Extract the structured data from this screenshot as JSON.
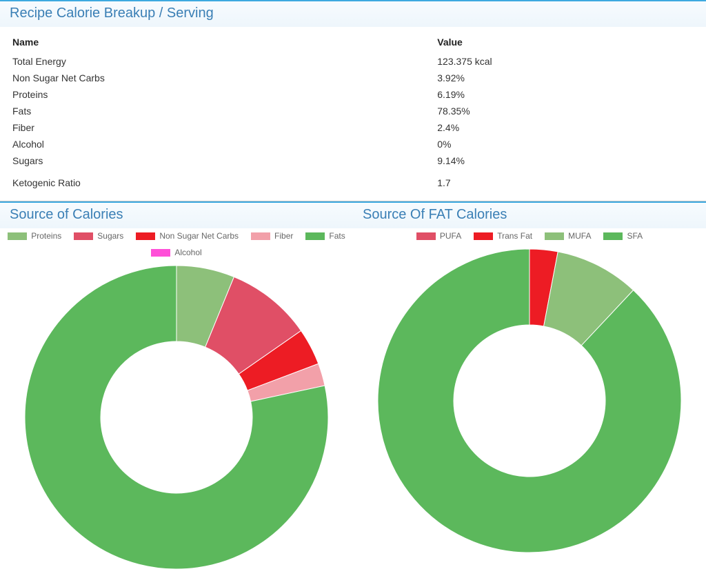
{
  "breakup_panel": {
    "title": "Recipe Calorie Breakup / Serving",
    "title_color": "#3a7fb5",
    "title_fontsize": 20,
    "border_top_color": "#3da9e0",
    "header_bg_top": "#f7fbfe",
    "header_bg_bottom": "#eef6fc",
    "columns": [
      "Name",
      "Value"
    ],
    "rows": [
      {
        "name": "Total Energy",
        "value": "123.375 kcal"
      },
      {
        "name": "Non Sugar Net Carbs",
        "value": "3.92%"
      },
      {
        "name": "Proteins",
        "value": "6.19%"
      },
      {
        "name": "Fats",
        "value": "78.35%"
      },
      {
        "name": "Fiber",
        "value": "2.4%"
      },
      {
        "name": "Alcohol",
        "value": "0%"
      },
      {
        "name": "Sugars",
        "value": "9.14%"
      }
    ],
    "footer_row": {
      "name": "Ketogenic Ratio",
      "value": "1.7"
    },
    "text_color": "#333333",
    "header_text_color": "#222222",
    "fontsize": 14
  },
  "calories_chart": {
    "title": "Source of Calories",
    "type": "donut",
    "outer_radius": 220,
    "inner_radius": 110,
    "background_color": "#ffffff",
    "start_angle_deg": 0,
    "legend_fontsize": 12,
    "legend_text_color": "#666666",
    "swatch_w": 28,
    "swatch_h": 11,
    "series": [
      {
        "label": "Proteins",
        "value": 6.19,
        "color": "#8dc07a"
      },
      {
        "label": "Sugars",
        "value": 9.14,
        "color": "#e04f66"
      },
      {
        "label": "Non Sugar Net Carbs",
        "value": 3.92,
        "color": "#ed1c24"
      },
      {
        "label": "Fiber",
        "value": 2.4,
        "color": "#f2a0a9"
      },
      {
        "label": "Fats",
        "value": 78.35,
        "color": "#5cb85c"
      },
      {
        "label": "Alcohol",
        "value": 0,
        "color": "#ff4fd8"
      }
    ]
  },
  "fat_chart": {
    "title": "Source Of FAT Calories",
    "type": "donut",
    "outer_radius": 220,
    "inner_radius": 110,
    "background_color": "#ffffff",
    "start_angle_deg": 0,
    "legend_fontsize": 12,
    "legend_text_color": "#666666",
    "swatch_w": 28,
    "swatch_h": 11,
    "series": [
      {
        "label": "PUFA",
        "value": 0,
        "color": "#e04f66"
      },
      {
        "label": "Trans Fat",
        "value": 3,
        "color": "#ed1c24"
      },
      {
        "label": "MUFA",
        "value": 9,
        "color": "#8dc07a"
      },
      {
        "label": "SFA",
        "value": 88,
        "color": "#5cb85c"
      }
    ]
  }
}
